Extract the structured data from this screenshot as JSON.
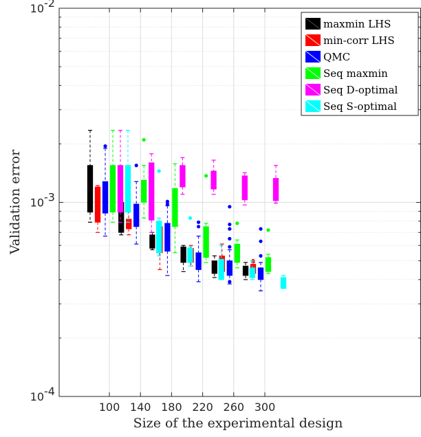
{
  "chart_data": {
    "type": "box",
    "xlabel": "Size of the experimental design",
    "ylabel": "Validation error",
    "y_scale": "log",
    "ylim": [
      0.0001,
      0.01
    ],
    "y_ticks": [
      {
        "value": 0.01,
        "base": "10",
        "exp": "-2"
      },
      {
        "value": 0.001,
        "base": "10",
        "exp": "-3"
      },
      {
        "value": 0.0001,
        "base": "10",
        "exp": "-4"
      }
    ],
    "categories": [
      "100",
      "140",
      "180",
      "220",
      "260",
      "300"
    ],
    "grid": true,
    "legend_position": "top-right",
    "series": [
      {
        "name": "maxmin LHS",
        "color": "#000000",
        "boxes": [
          {
            "whisker_low": 0.00079,
            "q1": 0.00089,
            "median": 0.0011,
            "q3": 0.00155,
            "whisker_high": 0.00235,
            "outliers": []
          },
          {
            "whisker_low": 0.00068,
            "q1": 0.0007,
            "median": 0.00078,
            "q3": 0.001,
            "whisker_high": 0.00112,
            "outliers": []
          },
          {
            "whisker_low": 0.00057,
            "q1": 0.00058,
            "median": 0.00062,
            "q3": 0.00068,
            "whisker_high": 0.0007,
            "outliers": []
          },
          {
            "whisker_low": 0.00044,
            "q1": 0.00049,
            "median": 0.00054,
            "q3": 0.00059,
            "whisker_high": 0.0006,
            "outliers": []
          },
          {
            "whisker_low": 0.00041,
            "q1": 0.00043,
            "median": 0.00045,
            "q3": 0.0005,
            "whisker_high": 0.00053,
            "outliers": []
          },
          {
            "whisker_low": 0.0004,
            "q1": 0.00042,
            "median": 0.00044,
            "q3": 0.00047,
            "whisker_high": 0.00049,
            "outliers": []
          }
        ]
      },
      {
        "name": "min-corr LHS",
        "color": "#ff0000",
        "boxes": [
          {
            "whisker_low": 0.0007,
            "q1": 0.00079,
            "median": 0.0009,
            "q3": 0.0012,
            "whisker_high": 0.00122,
            "outliers": []
          },
          {
            "whisker_low": 0.00068,
            "q1": 0.00073,
            "median": 0.00076,
            "q3": 0.00082,
            "whisker_high": 0.00096,
            "outliers": [
              0.001
            ]
          },
          {
            "whisker_low": 0.00045,
            "q1": 0.00055,
            "median": 0.0006,
            "q3": 0.00075,
            "whisker_high": 0.00079,
            "outliers": []
          },
          {
            "whisker_low": 0.00047,
            "q1": 0.00049,
            "median": 0.00052,
            "q3": 0.00058,
            "whisker_high": 0.0006,
            "outliers": []
          },
          {
            "whisker_low": 0.00041,
            "q1": 0.00044,
            "median": 0.00046,
            "q3": 0.00053,
            "whisker_high": 0.00061,
            "outliers": []
          },
          {
            "whisker_low": 0.00041,
            "q1": 0.00043,
            "median": 0.00045,
            "q3": 0.00048,
            "whisker_high": 0.00049,
            "outliers": [
              0.0005
            ]
          }
        ]
      },
      {
        "name": "QMC",
        "color": "#0000ff",
        "boxes": [
          {
            "whisker_low": 0.00067,
            "q1": 0.00088,
            "median": 0.001,
            "q3": 0.00128,
            "whisker_high": 0.0019,
            "outliers": [
              0.00195
            ]
          },
          {
            "whisker_low": 0.00061,
            "q1": 0.00075,
            "median": 0.0008,
            "q3": 0.00098,
            "whisker_high": 0.00128,
            "outliers": [
              0.00155
            ]
          },
          {
            "whisker_low": 0.00042,
            "q1": 0.00056,
            "median": 0.0006,
            "q3": 0.00078,
            "whisker_high": 0.00096,
            "outliers": [
              0.00098,
              0.00101
            ]
          },
          {
            "whisker_low": 0.00039,
            "q1": 0.00045,
            "median": 0.00049,
            "q3": 0.00055,
            "whisker_high": 0.00067,
            "outliers": [
              0.00075,
              0.00079
            ]
          },
          {
            "whisker_low": 0.00038,
            "q1": 0.00042,
            "median": 0.00045,
            "q3": 0.0005,
            "whisker_high": 0.00057,
            "outliers": [
              0.00059,
              0.00065,
              0.00073,
              0.00077,
              0.00095,
              0.00039
            ]
          },
          {
            "whisker_low": 0.00035,
            "q1": 0.0004,
            "median": 0.00042,
            "q3": 0.00046,
            "whisker_high": 0.00049,
            "outliers": [
              0.00053,
              0.00063,
              0.00073
            ]
          }
        ]
      },
      {
        "name": "Seq maxmin",
        "color": "#00ff00",
        "boxes": [
          {
            "whisker_low": 0.00079,
            "q1": 0.00089,
            "median": 0.0011,
            "q3": 0.00155,
            "whisker_high": 0.00235,
            "outliers": []
          },
          {
            "whisker_low": 0.00083,
            "q1": 0.001,
            "median": 0.00108,
            "q3": 0.0013,
            "whisker_high": 0.00155,
            "outliers": [
              0.0021
            ]
          },
          {
            "whisker_low": 0.00055,
            "q1": 0.00075,
            "median": 0.00082,
            "q3": 0.00118,
            "whisker_high": 0.00158,
            "outliers": []
          },
          {
            "whisker_low": 0.00049,
            "q1": 0.00052,
            "median": 0.00056,
            "q3": 0.00075,
            "whisker_high": 0.00078,
            "outliers": [
              0.00137
            ]
          },
          {
            "whisker_low": 0.00046,
            "q1": 0.00049,
            "median": 0.00052,
            "q3": 0.00061,
            "whisker_high": 0.00064,
            "outliers": [
              0.00078
            ]
          },
          {
            "whisker_low": 0.00043,
            "q1": 0.00044,
            "median": 0.00046,
            "q3": 0.00052,
            "whisker_high": 0.00054,
            "outliers": [
              0.00072
            ]
          }
        ]
      },
      {
        "name": "Seq D-optimal",
        "color": "#ff00ff",
        "boxes": [
          {
            "whisker_low": 0.00079,
            "q1": 0.00089,
            "median": 0.0011,
            "q3": 0.00155,
            "whisker_high": 0.00235,
            "outliers": []
          },
          {
            "whisker_low": 0.0007,
            "q1": 0.00081,
            "median": 0.001,
            "q3": 0.0016,
            "whisker_high": 0.00178,
            "outliers": []
          },
          {
            "whisker_low": 0.0011,
            "q1": 0.0012,
            "median": 0.0013,
            "q3": 0.00155,
            "whisker_high": 0.0017,
            "outliers": []
          },
          {
            "whisker_low": 0.0011,
            "q1": 0.00117,
            "median": 0.00125,
            "q3": 0.00145,
            "whisker_high": 0.00165,
            "outliers": []
          },
          {
            "whisker_low": 0.00097,
            "q1": 0.00103,
            "median": 0.00118,
            "q3": 0.00137,
            "whisker_high": 0.00142,
            "outliers": []
          },
          {
            "whisker_low": 0.00099,
            "q1": 0.00102,
            "median": 0.00108,
            "q3": 0.00133,
            "whisker_high": 0.00155,
            "outliers": []
          }
        ]
      },
      {
        "name": "Seq S-optimal",
        "color": "#00ffff",
        "boxes": [
          {
            "whisker_low": 0.00079,
            "q1": 0.00089,
            "median": 0.0011,
            "q3": 0.00155,
            "whisker_high": 0.00235,
            "outliers": []
          },
          {
            "whisker_low": 0.00053,
            "q1": 0.00055,
            "median": 0.00062,
            "q3": 0.0008,
            "whisker_high": 0.00083,
            "outliers": [
              0.00145
            ]
          },
          {
            "whisker_low": 0.00047,
            "q1": 0.00049,
            "median": 0.00052,
            "q3": 0.00058,
            "whisker_high": 0.00059,
            "outliers": [
              0.00083
            ]
          },
          {
            "whisker_low": 0.0004,
            "q1": 0.0004,
            "median": 0.00043,
            "q3": 0.00051,
            "whisker_high": 0.0006,
            "outliers": []
          },
          {
            "whisker_low": 0.0004,
            "q1": 0.00041,
            "median": 0.00042,
            "q3": 0.00046,
            "whisker_high": 0.0005,
            "outliers": []
          },
          {
            "whisker_low": 0.00036,
            "q1": 0.00036,
            "median": 0.00038,
            "q3": 0.00041,
            "whisker_high": 0.00042,
            "outliers": []
          }
        ]
      }
    ]
  }
}
